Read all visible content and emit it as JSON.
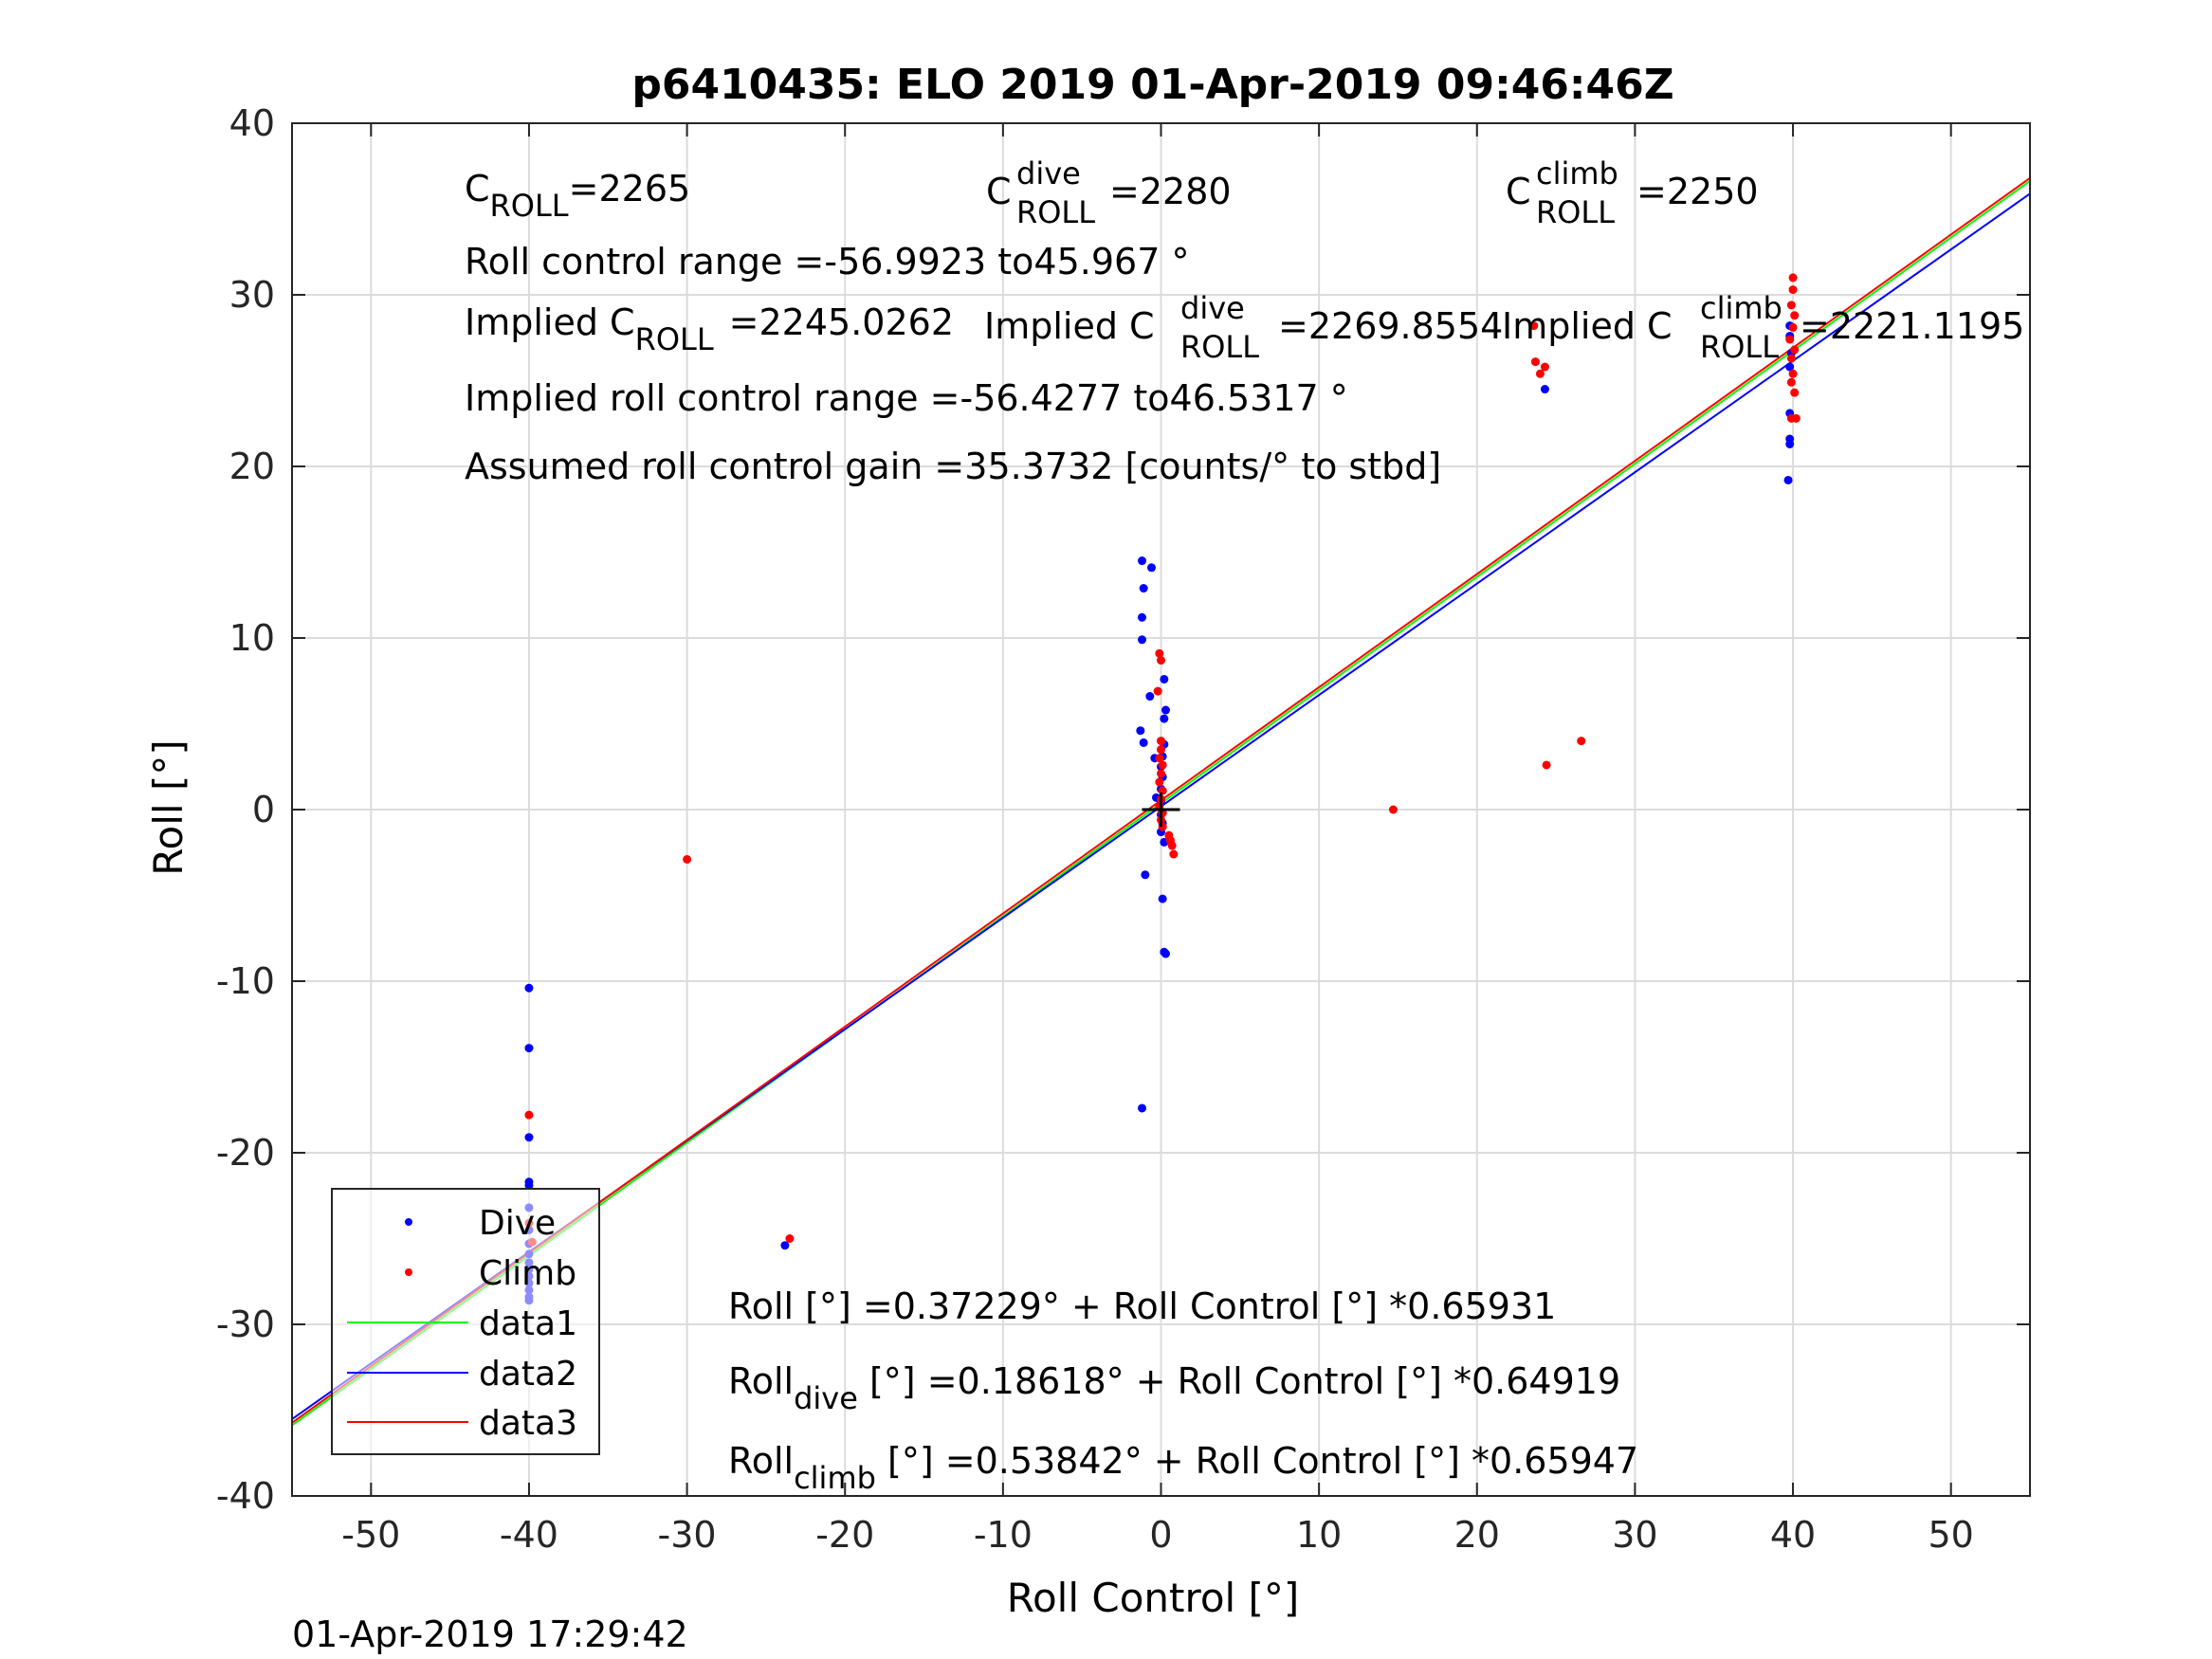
{
  "chart_data": {
    "type": "scatter",
    "title": "p6410435: ELO 2019 01-Apr-2019 09:46:46Z",
    "xlabel": "Roll Control [°]",
    "ylabel": "Roll [°]",
    "xlim": [
      -55,
      55
    ],
    "ylim": [
      -40,
      40
    ],
    "xticks": [
      -50,
      -40,
      -30,
      -20,
      -10,
      0,
      10,
      20,
      30,
      40,
      50
    ],
    "yticks": [
      -40,
      -30,
      -20,
      -10,
      0,
      10,
      20,
      30,
      40
    ],
    "xtick_labels": [
      "-50",
      "-40",
      "-30",
      "-20",
      "-10",
      "0",
      "10",
      "20",
      "30",
      "40",
      "50"
    ],
    "ytick_labels": [
      "-40",
      "-30",
      "-20",
      "-10",
      "0",
      "10",
      "20",
      "30",
      "40"
    ],
    "grid": true,
    "legend_position": "bottom-left",
    "timestamp": "01-Apr-2019 17:29:42",
    "series": [
      {
        "name": "Dive",
        "kind": "points",
        "color": "#0000ff",
        "points": [
          [
            -40,
            -10.4
          ],
          [
            -40,
            -13.9
          ],
          [
            -40,
            -19.1
          ],
          [
            -40,
            -21.7
          ],
          [
            -40,
            -21.9
          ],
          [
            -40,
            -23.2
          ],
          [
            -40,
            -24.5
          ],
          [
            -40,
            -25.3
          ],
          [
            -40,
            -25.9
          ],
          [
            -40,
            -26.4
          ],
          [
            -40,
            -26.8
          ],
          [
            -40,
            -27.2
          ],
          [
            -40,
            -27.6
          ],
          [
            -40,
            -28.0
          ],
          [
            -40,
            -28.4
          ],
          [
            -40,
            -28.6
          ],
          [
            -23.8,
            -25.4
          ],
          [
            -1.2,
            14.5
          ],
          [
            -1.1,
            12.9
          ],
          [
            -1.2,
            11.2
          ],
          [
            -1.2,
            9.9
          ],
          [
            -1.3,
            4.6
          ],
          [
            -1.1,
            3.9
          ],
          [
            -1.0,
            -3.8
          ],
          [
            -1.2,
            -17.4
          ],
          [
            -0.6,
            14.1
          ],
          [
            -0.7,
            6.6
          ],
          [
            -0.4,
            3.0
          ],
          [
            -0.3,
            0.7
          ],
          [
            0.2,
            7.6
          ],
          [
            0.3,
            5.8
          ],
          [
            0.2,
            5.3
          ],
          [
            0.2,
            3.8
          ],
          [
            0.1,
            3.1
          ],
          [
            0.0,
            2.5
          ],
          [
            0.1,
            1.9
          ],
          [
            0.0,
            1.2
          ],
          [
            0.0,
            0.5
          ],
          [
            0.0,
            -0.3
          ],
          [
            0.1,
            -0.8
          ],
          [
            0.0,
            -1.3
          ],
          [
            0.2,
            -1.9
          ],
          [
            0.1,
            -5.2
          ],
          [
            0.2,
            -8.3
          ],
          [
            0.3,
            -8.4
          ],
          [
            24.3,
            24.5
          ],
          [
            39.8,
            21.6
          ],
          [
            39.8,
            21.3
          ],
          [
            39.7,
            19.2
          ],
          [
            39.8,
            23.1
          ],
          [
            39.8,
            25.8
          ],
          [
            39.9,
            26.6
          ],
          [
            39.8,
            27.6
          ],
          [
            39.8,
            28.2
          ]
        ]
      },
      {
        "name": "Climb",
        "kind": "points",
        "color": "#ff0000",
        "points": [
          [
            -40,
            -17.8
          ],
          [
            -40,
            -24.1
          ],
          [
            -39.8,
            -25.2
          ],
          [
            -30,
            -2.9
          ],
          [
            -23.5,
            -25.0
          ],
          [
            -0.1,
            9.1
          ],
          [
            0.0,
            8.7
          ],
          [
            -0.2,
            6.9
          ],
          [
            0.0,
            4.0
          ],
          [
            0.0,
            3.5
          ],
          [
            -0.1,
            3.0
          ],
          [
            0.1,
            2.6
          ],
          [
            0.0,
            2.1
          ],
          [
            -0.1,
            1.6
          ],
          [
            0.1,
            1.1
          ],
          [
            0.0,
            0.6
          ],
          [
            -0.1,
            0.2
          ],
          [
            0.1,
            -0.2
          ],
          [
            0.0,
            -0.6
          ],
          [
            0.1,
            -1.0
          ],
          [
            0.6,
            -1.8
          ],
          [
            0.7,
            -2.1
          ],
          [
            0.8,
            -2.6
          ],
          [
            0.5,
            -1.5
          ],
          [
            14.7,
            0.0
          ],
          [
            23.6,
            28.2
          ],
          [
            23.7,
            26.1
          ],
          [
            24.0,
            25.4
          ],
          [
            24.3,
            25.8
          ],
          [
            24.4,
            2.6
          ],
          [
            26.6,
            4.0
          ],
          [
            40.0,
            31.0
          ],
          [
            40.0,
            30.3
          ],
          [
            39.9,
            29.4
          ],
          [
            40.1,
            28.8
          ],
          [
            40.0,
            28.1
          ],
          [
            39.8,
            27.4
          ],
          [
            40.1,
            26.8
          ],
          [
            39.9,
            26.3
          ],
          [
            40.0,
            25.4
          ],
          [
            39.9,
            24.9
          ],
          [
            40.1,
            24.3
          ],
          [
            39.9,
            22.8
          ],
          [
            40.2,
            22.8
          ]
        ]
      },
      {
        "name": "data1",
        "kind": "line",
        "color": "#00ff00",
        "intercept": 0.37229,
        "slope": 0.65931
      },
      {
        "name": "data2",
        "kind": "line",
        "color": "#0000ff",
        "intercept": 0.18618,
        "slope": 0.64919
      },
      {
        "name": "data3",
        "kind": "line",
        "color": "#ff0000",
        "intercept": 0.53842,
        "slope": 0.65947
      }
    ],
    "annotations": {
      "c_roll": {
        "main": "C",
        "sub": "ROLL",
        "value": "=2265"
      },
      "c_roll_dive": {
        "main": "C",
        "sup": "dive",
        "sub": "ROLL",
        "value": "=2280"
      },
      "c_roll_climb": {
        "main": "C",
        "sup": "climb",
        "sub": "ROLL",
        "value": "=2250"
      },
      "control_range": "Roll control range =-56.9923 to45.967 °",
      "implied_c_roll": {
        "prefix": "Implied C",
        "sub": "ROLL",
        "value": "=2245.0262"
      },
      "implied_c_roll_dive": {
        "prefix": "Implied C",
        "sup": "dive",
        "sub": "ROLL",
        "value": "=2269.8554"
      },
      "implied_c_roll_climb": {
        "prefix": "Implied C",
        "sup": "climb",
        "sub": "ROLL",
        "value": "=2221.1195"
      },
      "implied_range": "Implied roll control range =-56.4277 to46.5317 °",
      "assumed_gain": "Assumed roll control gain =35.3732 [counts/° to stbd]",
      "fit_all": "Roll [°] =0.37229° + Roll Control [°] *0.65931",
      "fit_dive": {
        "main": "Roll",
        "sub": "dive",
        "rest": " [°] =0.18618° + Roll Control [°] *0.64919"
      },
      "fit_climb": {
        "main": "Roll",
        "sub": "climb",
        "rest": " [°] =0.53842° + Roll Control [°] *0.65947"
      }
    }
  }
}
